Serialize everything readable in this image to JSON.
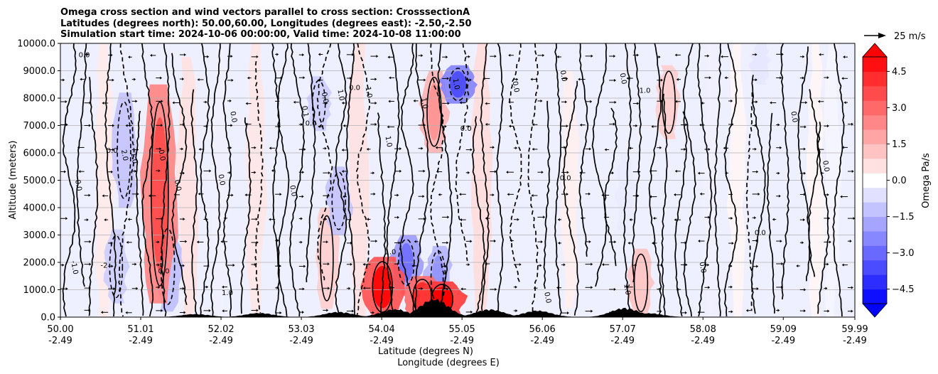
{
  "chart_data": {
    "type": "heatmap",
    "title": [
      "Omega cross section and wind vectors parallel to cross section: CrosssectionA",
      "Latitudes (degrees north): 50.00,60.00, Longitudes (degrees east): -2.50,-2.50",
      "Simulation start time: 2024-10-06 00:00:00, Valid time: 2024-10-08 11:00:00"
    ],
    "ylabel": "Altitude (meters)",
    "xlabel_lat": "Latitude (degrees N)",
    "xlabel_lon": "Longitude (degrees E)",
    "ylim": [
      0,
      10000
    ],
    "xlim": [
      50.0,
      59.99
    ],
    "y_ticks": [
      0,
      1000,
      2000,
      3000,
      4000,
      5000,
      6000,
      7000,
      8000,
      9000,
      10000
    ],
    "y_tick_labels": [
      "0.0",
      "1000.0",
      "2000.0",
      "3000.0",
      "4000.0",
      "5000.0",
      "6000.0",
      "7000.0",
      "8000.0",
      "9000.0",
      "10000.0"
    ],
    "x_ticks": [
      {
        "lat": "50.00",
        "lon": "-2.49"
      },
      {
        "lat": "51.01",
        "lon": "-2.49"
      },
      {
        "lat": "52.02",
        "lon": "-2.49"
      },
      {
        "lat": "53.03",
        "lon": "-2.49"
      },
      {
        "lat": "54.04",
        "lon": "-2.49"
      },
      {
        "lat": "55.05",
        "lon": "-2.49"
      },
      {
        "lat": "56.06",
        "lon": "-2.49"
      },
      {
        "lat": "57.07",
        "lon": "-2.49"
      },
      {
        "lat": "58.08",
        "lon": "-2.49"
      },
      {
        "lat": "59.09",
        "lon": "-2.49"
      },
      {
        "lat": "59.99",
        "lon": "-2.49"
      }
    ],
    "colorbar": {
      "label": "Omega Pa/s",
      "range": [
        -5.1,
        5.1
      ],
      "ticks": [
        4.5,
        3.0,
        1.5,
        0.0,
        -1.5,
        -3.0,
        -4.5
      ],
      "tick_labels": [
        "4.5",
        "3.0",
        "1.5",
        "0.0",
        "−1.5",
        "−3.0",
        "−4.5"
      ]
    },
    "quiver_key": {
      "label": "25 m/s",
      "value": 25
    },
    "omega_field": {
      "positive_bands": [
        {
          "lat": 50.55,
          "z0": 0,
          "z1": 10000,
          "value": 0.4
        },
        {
          "lat": 51.25,
          "z0": 500,
          "z1": 8500,
          "value": 2.5
        },
        {
          "lat": 51.6,
          "z0": 0,
          "z1": 9500,
          "value": 0.6
        },
        {
          "lat": 52.45,
          "z0": 0,
          "z1": 10000,
          "value": 0.5
        },
        {
          "lat": 53.35,
          "z0": 300,
          "z1": 4000,
          "value": 1.0
        },
        {
          "lat": 53.75,
          "z0": 0,
          "z1": 10000,
          "value": 0.6
        },
        {
          "lat": 54.05,
          "z0": 0,
          "z1": 2200,
          "value": 3.5
        },
        {
          "lat": 54.55,
          "z0": 0,
          "z1": 1500,
          "value": 3.0
        },
        {
          "lat": 54.8,
          "z0": 0,
          "z1": 1300,
          "value": 4.0
        },
        {
          "lat": 54.7,
          "z0": 6000,
          "z1": 9000,
          "value": 1.5
        },
        {
          "lat": 55.3,
          "z0": 0,
          "z1": 10000,
          "value": 0.7
        },
        {
          "lat": 56.4,
          "z0": 300,
          "z1": 9000,
          "value": 0.3
        },
        {
          "lat": 57.3,
          "z0": 0,
          "z1": 2500,
          "value": 1.2
        },
        {
          "lat": 57.65,
          "z0": 6500,
          "z1": 9200,
          "value": 1.0
        },
        {
          "lat": 58.5,
          "z0": 0,
          "z1": 10000,
          "value": 0.2
        },
        {
          "lat": 59.5,
          "z0": 0,
          "z1": 10000,
          "value": 0.2
        }
      ],
      "negative_bands": [
        {
          "lat": 50.8,
          "z0": 4000,
          "z1": 8200,
          "value": -1.2
        },
        {
          "lat": 50.7,
          "z0": 500,
          "z1": 3200,
          "value": -1.0
        },
        {
          "lat": 51.35,
          "z0": 200,
          "z1": 3500,
          "value": -1.3
        },
        {
          "lat": 52.0,
          "z0": 0,
          "z1": 10000,
          "value": -0.3
        },
        {
          "lat": 53.5,
          "z0": 3000,
          "z1": 5500,
          "value": -1.2
        },
        {
          "lat": 53.25,
          "z0": 6800,
          "z1": 8800,
          "value": -1.0
        },
        {
          "lat": 54.35,
          "z0": 1000,
          "z1": 3000,
          "value": -2.0
        },
        {
          "lat": 55.0,
          "z0": 7800,
          "z1": 9200,
          "value": -2.5
        },
        {
          "lat": 54.75,
          "z0": 300,
          "z1": 2600,
          "value": -1.5
        },
        {
          "lat": 57.1,
          "z0": 3000,
          "z1": 6000,
          "value": -0.4
        },
        {
          "lat": 58.2,
          "z0": 0,
          "z1": 10000,
          "value": -0.3
        },
        {
          "lat": 58.8,
          "z0": 8500,
          "z1": 10000,
          "value": -0.5
        },
        {
          "lat": 59.7,
          "z0": 0,
          "z1": 10000,
          "value": -0.2
        }
      ]
    },
    "contour_levels": [
      -2.0,
      -1.0,
      0.0,
      1.0,
      2.0
    ],
    "contour_labels": [
      {
        "lat": 50.3,
        "z": 9500,
        "text": "0.0"
      },
      {
        "lat": 50.2,
        "z": 4800,
        "text": "0.0"
      },
      {
        "lat": 50.15,
        "z": 1800,
        "text": "-1.0"
      },
      {
        "lat": 50.65,
        "z": 6000,
        "text": "0.0"
      },
      {
        "lat": 50.78,
        "z": 5900,
        "text": "2.0"
      },
      {
        "lat": 50.9,
        "z": 5800,
        "text": "1.0"
      },
      {
        "lat": 50.55,
        "z": 1800,
        "text": "-2"
      },
      {
        "lat": 51.25,
        "z": 5900,
        "text": "0.0"
      },
      {
        "lat": 51.45,
        "z": 4800,
        "text": "0.0"
      },
      {
        "lat": 51.3,
        "z": 1600,
        "text": "0.0"
      },
      {
        "lat": 52.0,
        "z": 5000,
        "text": "0.0"
      },
      {
        "lat": 52.15,
        "z": 7300,
        "text": "0.0"
      },
      {
        "lat": 52.1,
        "z": 800,
        "text": "1.0"
      },
      {
        "lat": 52.9,
        "z": 4600,
        "text": "0.0"
      },
      {
        "lat": 53.05,
        "z": 7500,
        "text": "0.1"
      },
      {
        "lat": 53.15,
        "z": 7000,
        "text": "0.0"
      },
      {
        "lat": 53.3,
        "z": 8000,
        "text": "0.0"
      },
      {
        "lat": 53.5,
        "z": 8100,
        "text": "1.0"
      },
      {
        "lat": 53.7,
        "z": 8300,
        "text": "0.0"
      },
      {
        "lat": 53.85,
        "z": 8200,
        "text": "1.0"
      },
      {
        "lat": 54.1,
        "z": 6400,
        "text": "1.0"
      },
      {
        "lat": 54.15,
        "z": 2300,
        "text": "1.0"
      },
      {
        "lat": 54.55,
        "z": 7800,
        "text": "1.0"
      },
      {
        "lat": 54.95,
        "z": 8500,
        "text": "1.0"
      },
      {
        "lat": 55.1,
        "z": 6800,
        "text": "0.0"
      },
      {
        "lat": 55.7,
        "z": 8400,
        "text": "0.0"
      },
      {
        "lat": 56.3,
        "z": 8800,
        "text": "0.0"
      },
      {
        "lat": 56.35,
        "z": 5000,
        "text": "0.0"
      },
      {
        "lat": 56.1,
        "z": 700,
        "text": "0.0"
      },
      {
        "lat": 57.05,
        "z": 8700,
        "text": "0.0"
      },
      {
        "lat": 57.35,
        "z": 8200,
        "text": "1.0"
      },
      {
        "lat": 57.1,
        "z": 1000,
        "text": "1.0"
      },
      {
        "lat": 58.05,
        "z": 1800,
        "text": "0.0"
      },
      {
        "lat": 58.8,
        "z": 3000,
        "text": "0.0"
      },
      {
        "lat": 59.2,
        "z": 7300,
        "text": "0.0"
      },
      {
        "lat": 59.6,
        "z": 5500,
        "text": "0.0"
      }
    ],
    "terrain_peaks_m": [
      {
        "lat": 51.7,
        "z": 120
      },
      {
        "lat": 52.5,
        "z": 160
      },
      {
        "lat": 53.5,
        "z": 200
      },
      {
        "lat": 54.2,
        "z": 300
      },
      {
        "lat": 54.7,
        "z": 700
      },
      {
        "lat": 55.4,
        "z": 300
      },
      {
        "lat": 56.0,
        "z": 250
      },
      {
        "lat": 57.1,
        "z": 350
      },
      {
        "lat": 57.4,
        "z": 150
      }
    ]
  },
  "colors": {
    "positive_max": "#ff0000",
    "negative_max": "#0000ff",
    "neutral": "#ffffff",
    "contour": "#000000",
    "terrain": "#000000",
    "grid": "#b0b0b0"
  }
}
